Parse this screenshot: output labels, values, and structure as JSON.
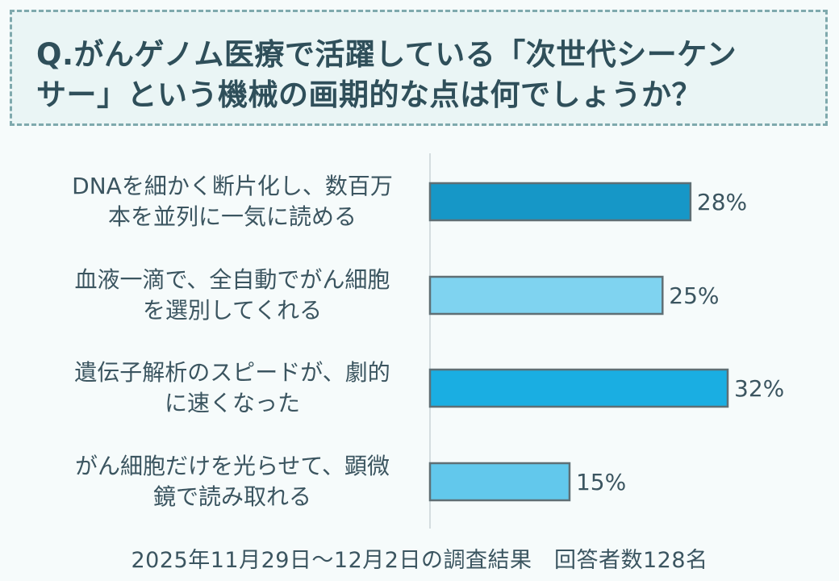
{
  "question": {
    "line1": "Q.がんゲノム医療で活躍している「次世代シーケン",
    "line2": "サー」という機械の画期的な点は何でしょうか？"
  },
  "chart_data": {
    "type": "bar",
    "orientation": "horizontal",
    "categories": [
      [
        "DNAを細かく断片化し、数百万",
        "本を並列に一気に読める"
      ],
      [
        "血液一滴で、全自動でがん細胞",
        "を選別してくれる"
      ],
      [
        "遺伝子解析のスピードが、劇的",
        "に速くなった"
      ],
      [
        "がん細胞だけを光らせて、顕微",
        "鏡で読み取れる"
      ]
    ],
    "values": [
      28,
      25,
      32,
      15
    ],
    "value_labels": [
      "28%",
      "25%",
      "32%",
      "15%"
    ],
    "unit": "%",
    "colors": [
      "#1697c7",
      "#7fd3f0",
      "#1aaee2",
      "#62c8ec"
    ],
    "xlim": [
      0,
      32
    ]
  },
  "footer": {
    "text": "2025年11月29日〜12月2日の調査結果　回答者数128名"
  }
}
